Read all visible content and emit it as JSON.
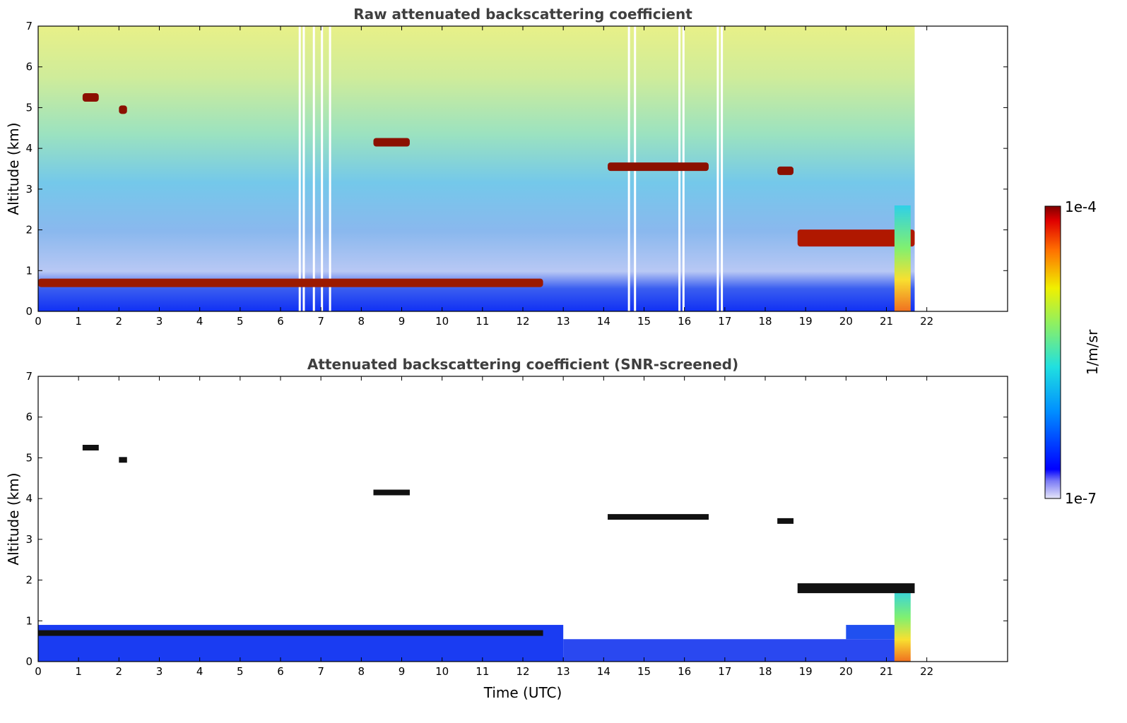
{
  "figure": {
    "colorbar": {
      "label": "1/m/sr",
      "max_label": "1e-4",
      "min_label": "1e-7",
      "vmin": 1e-07,
      "vmax": 0.0001,
      "scale": "log",
      "colormap": "jet"
    },
    "xlabel": "Time (UTC)"
  },
  "chart_data": [
    {
      "type": "heatmap",
      "title": "Raw attenuated backscattering coefficient",
      "ylabel": "Altitude (km)",
      "xlim": [
        0,
        24
      ],
      "ylim": [
        0,
        7
      ],
      "x_ticks": [
        "0",
        "1",
        "2",
        "3",
        "4",
        "5",
        "6",
        "7",
        "8",
        "9",
        "10",
        "11",
        "12",
        "13",
        "14",
        "15",
        "16",
        "17",
        "18",
        "19",
        "20",
        "21",
        "22"
      ],
      "y_ticks": [
        "0",
        "1",
        "2",
        "3",
        "4",
        "5",
        "6",
        "7"
      ],
      "data_end_time": 21.7,
      "data_gaps_hours": [
        6.45,
        6.55,
        6.8,
        7.0,
        7.2,
        14.6,
        14.75,
        15.85,
        15.95,
        16.8,
        16.9
      ],
      "features": [
        {
          "name": "cloud",
          "t_start": 14.1,
          "t_end": 16.6,
          "alt_km": 3.55
        },
        {
          "name": "cloud",
          "t_start": 8.3,
          "t_end": 9.2,
          "alt_km": 4.15
        },
        {
          "name": "cloud",
          "t_start": 18.3,
          "t_end": 18.7,
          "alt_km": 3.45
        },
        {
          "name": "cloud",
          "t_start": 1.1,
          "t_end": 1.5,
          "alt_km": 5.25
        },
        {
          "name": "cloud",
          "t_start": 2.0,
          "t_end": 2.2,
          "alt_km": 4.95
        },
        {
          "name": "boundary-layer clouds",
          "t_start": 0.0,
          "t_end": 12.5,
          "alt_km": 0.7
        },
        {
          "name": "mid clouds",
          "t_start": 18.8,
          "t_end": 21.7,
          "alt_km": 1.8
        },
        {
          "name": "precipitation",
          "t_start": 21.2,
          "t_end": 21.6,
          "alt_km": 1.5
        }
      ]
    },
    {
      "type": "heatmap",
      "title": "Attenuated backscattering coefficient (SNR-screened)",
      "ylabel": "Altitude (km)",
      "xlabel": "Time (UTC)",
      "xlim": [
        0,
        24
      ],
      "ylim": [
        0,
        7
      ],
      "x_ticks": [
        "0",
        "1",
        "2",
        "3",
        "4",
        "5",
        "6",
        "7",
        "8",
        "9",
        "10",
        "11",
        "12",
        "13",
        "14",
        "15",
        "16",
        "17",
        "18",
        "19",
        "20",
        "21",
        "22"
      ],
      "y_ticks": [
        "0",
        "1",
        "2",
        "3",
        "4",
        "5",
        "6",
        "7"
      ],
      "data_end_time": 21.7
    }
  ]
}
